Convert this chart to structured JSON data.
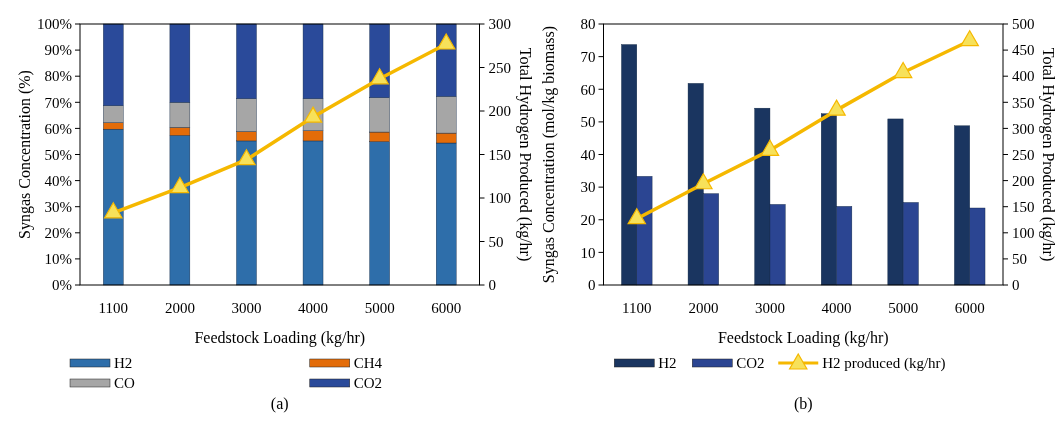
{
  "chart_data": [
    {
      "type": "bar",
      "stacked": true,
      "xlabel": "Feedstock Loading (kg/hr)",
      "ylabel": "Syngas Concentration (%)",
      "y2label": "Total Hydrogen Produced (kg/hr)",
      "categories": [
        "1100",
        "2000",
        "3000",
        "4000",
        "5000",
        "6000"
      ],
      "series": [
        {
          "name": "H2",
          "color": "#2e6eaa",
          "values": [
            59.7,
            57.3,
            55.2,
            55.2,
            54.9,
            54.4
          ]
        },
        {
          "name": "CH4",
          "color": "#e36c09",
          "values": [
            2.5,
            3.1,
            3.6,
            3.9,
            3.7,
            3.8
          ]
        },
        {
          "name": "CO",
          "color": "#a6a6a6",
          "values": [
            6.5,
            9.6,
            12.6,
            12.3,
            13.2,
            14.1
          ]
        },
        {
          "name": "CO2",
          "color": "#2a4a9a",
          "values": [
            31.3,
            30,
            28.6,
            28.6,
            28.2,
            27.7
          ]
        },
        {
          "type": "line",
          "axis": "y2",
          "color": "#f5b800",
          "marker": "triangle",
          "values": [
            83,
            112,
            144,
            193,
            237,
            277
          ]
        }
      ],
      "ylim": [
        0,
        100
      ],
      "yticks": [
        {
          "value": 0,
          "label": "0%"
        },
        {
          "value": 10,
          "label": "10%"
        },
        {
          "value": 20,
          "label": "20%"
        },
        {
          "value": 30,
          "label": "30%"
        },
        {
          "value": 40,
          "label": "40%"
        },
        {
          "value": 50,
          "label": "50%"
        },
        {
          "value": 60,
          "label": "60%"
        },
        {
          "value": 70,
          "label": "70%"
        },
        {
          "value": 80,
          "label": "80%"
        },
        {
          "value": 90,
          "label": "90%"
        },
        {
          "value": 100,
          "label": "100%"
        }
      ],
      "y2lim": [
        0,
        300
      ],
      "y2ticks": [
        0,
        50,
        100,
        150,
        200,
        250,
        300
      ],
      "legend": "bottom",
      "grid": false,
      "annotations": [
        "(a)"
      ]
    },
    {
      "type": "bar",
      "xlabel": "Feedstock Loading (kg/hr)",
      "ylabel": "Syngas Concentration (mol/kg biomass)",
      "y2label": "Total Hydrogen Produced (kg/hr)",
      "categories": [
        "1100",
        "2000",
        "3000",
        "4000",
        "5000",
        "6000"
      ],
      "series": [
        {
          "name": "H2",
          "color": "#1a3560",
          "values": [
            73.7,
            61.8,
            54.2,
            52.5,
            50.9,
            48.8
          ]
        },
        {
          "name": "CO2",
          "color": "#2b4592",
          "values": [
            33.3,
            28,
            24.7,
            24.1,
            25.3,
            23.6
          ]
        },
        {
          "name": "H2 produced (kg/hr)",
          "type": "line",
          "axis": "y2",
          "color": "#f5b800",
          "marker": "triangle",
          "values": [
            127,
            194,
            258,
            335,
            407,
            468
          ]
        }
      ],
      "ylim": [
        0,
        80
      ],
      "yticks": [
        0,
        10,
        20,
        30,
        40,
        50,
        60,
        70,
        80
      ],
      "y2lim": [
        0,
        500
      ],
      "y2ticks": [
        0,
        50,
        100,
        150,
        200,
        250,
        300,
        350,
        400,
        450,
        500
      ],
      "legend": "bottom",
      "grid": false,
      "annotations": [
        "(b)"
      ]
    }
  ]
}
